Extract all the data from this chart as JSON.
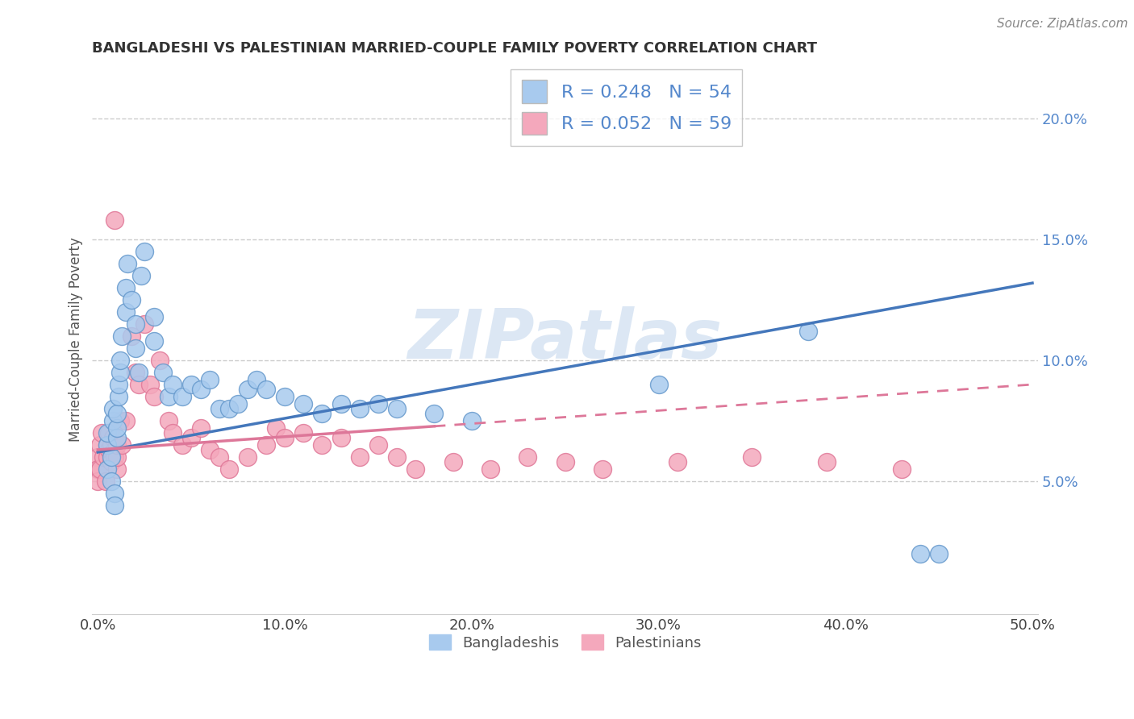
{
  "title": "BANGLADESHI VS PALESTINIAN MARRIED-COUPLE FAMILY POVERTY CORRELATION CHART",
  "source": "Source: ZipAtlas.com",
  "ylabel": "Married-Couple Family Poverty",
  "xlim": [
    -0.003,
    0.503
  ],
  "ylim": [
    -0.005,
    0.222
  ],
  "xticks": [
    0.0,
    0.1,
    0.2,
    0.3,
    0.4,
    0.5
  ],
  "xticklabels": [
    "0.0%",
    "10.0%",
    "20.0%",
    "30.0%",
    "40.0%",
    "50.0%"
  ],
  "yticks_right": [
    0.05,
    0.1,
    0.15,
    0.2
  ],
  "yticklabels_right": [
    "5.0%",
    "10.0%",
    "15.0%",
    "20.0%"
  ],
  "legend_label1": "Bangladeshis",
  "legend_label2": "Palestinians",
  "blue_fill": "#A8CAEE",
  "pink_fill": "#F4A8BC",
  "blue_edge": "#6699CC",
  "pink_edge": "#E07898",
  "blue_line": "#4477BB",
  "pink_line": "#DD7799",
  "label_color": "#5588CC",
  "watermark": "ZIPatlas",
  "grid_color": "#CCCCCC",
  "bg": "#FFFFFF",
  "blue_trend_start": 0.062,
  "blue_trend_end": 0.132,
  "pink_trend_start": 0.063,
  "pink_trend_end": 0.09,
  "bangladeshi_x": [
    0.005,
    0.005,
    0.005,
    0.007,
    0.007,
    0.008,
    0.008,
    0.009,
    0.009,
    0.01,
    0.01,
    0.01,
    0.011,
    0.011,
    0.012,
    0.012,
    0.013,
    0.015,
    0.015,
    0.016,
    0.018,
    0.02,
    0.02,
    0.022,
    0.023,
    0.025,
    0.03,
    0.03,
    0.035,
    0.038,
    0.04,
    0.045,
    0.05,
    0.055,
    0.06,
    0.065,
    0.07,
    0.075,
    0.08,
    0.085,
    0.09,
    0.1,
    0.11,
    0.12,
    0.13,
    0.14,
    0.15,
    0.16,
    0.18,
    0.2,
    0.3,
    0.38,
    0.44,
    0.45
  ],
  "bangladeshi_y": [
    0.065,
    0.07,
    0.055,
    0.05,
    0.06,
    0.075,
    0.08,
    0.045,
    0.04,
    0.068,
    0.072,
    0.078,
    0.085,
    0.09,
    0.095,
    0.1,
    0.11,
    0.12,
    0.13,
    0.14,
    0.125,
    0.115,
    0.105,
    0.095,
    0.135,
    0.145,
    0.108,
    0.118,
    0.095,
    0.085,
    0.09,
    0.085,
    0.09,
    0.088,
    0.092,
    0.08,
    0.08,
    0.082,
    0.088,
    0.092,
    0.088,
    0.085,
    0.082,
    0.078,
    0.082,
    0.08,
    0.082,
    0.08,
    0.078,
    0.075,
    0.09,
    0.112,
    0.02,
    0.02
  ],
  "palestinian_x": [
    0.0,
    0.0,
    0.0,
    0.001,
    0.001,
    0.002,
    0.003,
    0.004,
    0.005,
    0.005,
    0.006,
    0.006,
    0.007,
    0.007,
    0.008,
    0.008,
    0.009,
    0.009,
    0.01,
    0.01,
    0.01,
    0.012,
    0.013,
    0.015,
    0.018,
    0.02,
    0.022,
    0.025,
    0.028,
    0.03,
    0.033,
    0.038,
    0.04,
    0.045,
    0.05,
    0.055,
    0.06,
    0.065,
    0.07,
    0.08,
    0.09,
    0.095,
    0.1,
    0.11,
    0.12,
    0.13,
    0.14,
    0.15,
    0.16,
    0.17,
    0.19,
    0.21,
    0.23,
    0.25,
    0.27,
    0.31,
    0.35,
    0.39,
    0.43
  ],
  "palestinian_y": [
    0.06,
    0.055,
    0.05,
    0.065,
    0.055,
    0.07,
    0.06,
    0.05,
    0.065,
    0.06,
    0.07,
    0.063,
    0.058,
    0.065,
    0.068,
    0.062,
    0.158,
    0.06,
    0.055,
    0.06,
    0.065,
    0.075,
    0.065,
    0.075,
    0.11,
    0.095,
    0.09,
    0.115,
    0.09,
    0.085,
    0.1,
    0.075,
    0.07,
    0.065,
    0.068,
    0.072,
    0.063,
    0.06,
    0.055,
    0.06,
    0.065,
    0.072,
    0.068,
    0.07,
    0.065,
    0.068,
    0.06,
    0.065,
    0.06,
    0.055,
    0.058,
    0.055,
    0.06,
    0.058,
    0.055,
    0.058,
    0.06,
    0.058,
    0.055
  ]
}
